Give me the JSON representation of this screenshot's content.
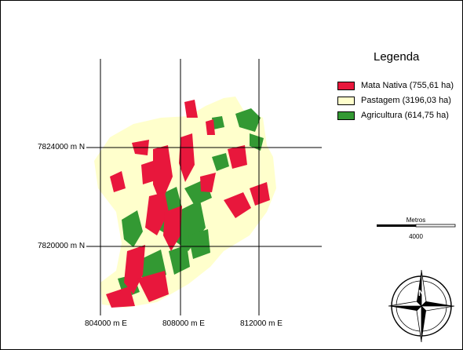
{
  "legend": {
    "title": "Legenda",
    "items": [
      {
        "label": "Mata Nativa (755,61 ha)",
        "color": "#e8173c"
      },
      {
        "label": "Pastagem (3196,03 ha)",
        "color": "#ffffcc"
      },
      {
        "label": "Agricultura (614,75 ha)",
        "color": "#339933"
      }
    ]
  },
  "axes": {
    "northing": [
      "7824000  m N",
      "7820000  m N"
    ],
    "easting": [
      "804000   m E",
      "808000   m E",
      "812000   m E"
    ]
  },
  "scale": {
    "unit": "Metros",
    "value": "4000"
  },
  "compass": {
    "north_letter": "N",
    "icon": "north-arrow-compass-rose"
  }
}
